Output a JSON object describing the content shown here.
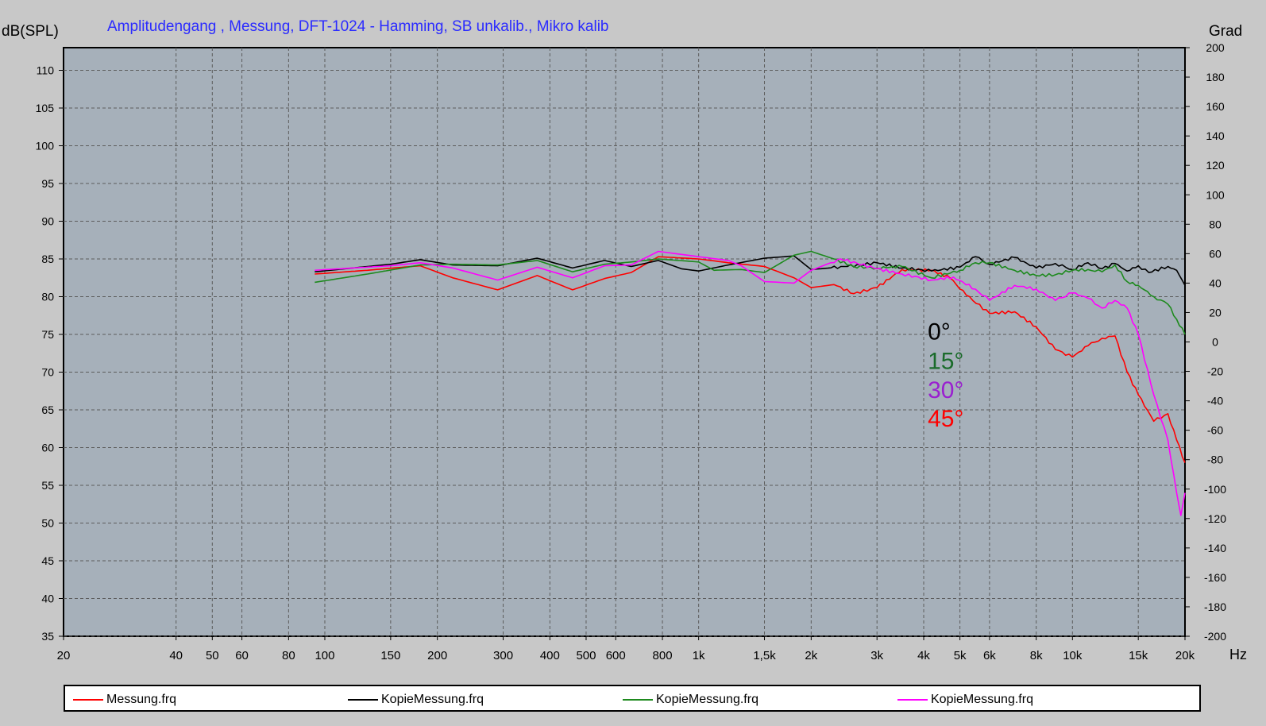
{
  "chart_data": {
    "type": "line",
    "title": "Amplitudengang , Messung, DFT-1024 - Hamming, SB unkalib., Mikro kalib",
    "ylabel": "dB(SPL)",
    "y2label": "Grad",
    "xunit": "Hz",
    "xscale": "log",
    "xlim": [
      20,
      20000
    ],
    "ylim": [
      35,
      113
    ],
    "y2lim": [
      -200,
      200
    ],
    "grid": true,
    "legend_position": "bottom",
    "x_ticks": [
      {
        "v": 20,
        "label": "20"
      },
      {
        "v": 40,
        "label": "40"
      },
      {
        "v": 50,
        "label": "50"
      },
      {
        "v": 60,
        "label": "60"
      },
      {
        "v": 80,
        "label": "80"
      },
      {
        "v": 100,
        "label": "100"
      },
      {
        "v": 150,
        "label": "150"
      },
      {
        "v": 200,
        "label": "200"
      },
      {
        "v": 300,
        "label": "300"
      },
      {
        "v": 400,
        "label": "400"
      },
      {
        "v": 500,
        "label": "500"
      },
      {
        "v": 600,
        "label": "600"
      },
      {
        "v": 800,
        "label": "800"
      },
      {
        "v": 1000,
        "label": "1k"
      },
      {
        "v": 1500,
        "label": "1,5k"
      },
      {
        "v": 2000,
        "label": "2k"
      },
      {
        "v": 3000,
        "label": "3k"
      },
      {
        "v": 4000,
        "label": "4k"
      },
      {
        "v": 5000,
        "label": "5k"
      },
      {
        "v": 6000,
        "label": "6k"
      },
      {
        "v": 8000,
        "label": "8k"
      },
      {
        "v": 10000,
        "label": "10k"
      },
      {
        "v": 15000,
        "label": "15k"
      },
      {
        "v": 20000,
        "label": "20k"
      }
    ],
    "y_ticks": [
      35,
      40,
      45,
      50,
      55,
      60,
      65,
      70,
      75,
      80,
      85,
      90,
      95,
      100,
      105,
      110
    ],
    "y2_ticks": [
      -200,
      -180,
      -160,
      -140,
      -120,
      -100,
      -80,
      -60,
      -40,
      -20,
      0,
      20,
      40,
      60,
      80,
      100,
      120,
      140,
      160,
      180,
      200
    ],
    "annotations": [
      {
        "text": "0°",
        "color": "#000000",
        "x": 4100,
        "y": 74.3
      },
      {
        "text": "15°",
        "color": "#1a6b2a",
        "x": 4100,
        "y": 70.4
      },
      {
        "text": "30°",
        "color": "#9a1fd0",
        "x": 4100,
        "y": 66.6
      },
      {
        "text": "45°",
        "color": "#ff0000",
        "x": 4100,
        "y": 62.8
      }
    ],
    "series": [
      {
        "name": "Messung.frq",
        "color": "#ff0000",
        "points": [
          [
            94,
            83.0
          ],
          [
            130,
            83.5
          ],
          [
            180,
            84.1
          ],
          [
            220,
            82.5
          ],
          [
            290,
            80.9
          ],
          [
            370,
            82.8
          ],
          [
            460,
            80.9
          ],
          [
            560,
            82.4
          ],
          [
            660,
            83.2
          ],
          [
            780,
            85.3
          ],
          [
            1000,
            85.0
          ],
          [
            1200,
            84.5
          ],
          [
            1500,
            84.0
          ],
          [
            1800,
            82.5
          ],
          [
            2000,
            81.2
          ],
          [
            2300,
            81.6
          ],
          [
            2600,
            80.4
          ],
          [
            3000,
            81.2
          ],
          [
            3500,
            83.6
          ],
          [
            4200,
            83.5
          ],
          [
            4700,
            82.5
          ],
          [
            5200,
            80.2
          ],
          [
            6000,
            77.8
          ],
          [
            7000,
            78.0
          ],
          [
            8000,
            76.0
          ],
          [
            9000,
            73.0
          ],
          [
            10000,
            72.0
          ],
          [
            11000,
            73.5
          ],
          [
            12000,
            74.5
          ],
          [
            13000,
            74.8
          ],
          [
            14000,
            70.0
          ],
          [
            15000,
            67.0
          ],
          [
            16500,
            63.5
          ],
          [
            18000,
            64.5
          ],
          [
            19000,
            61.0
          ],
          [
            20000,
            58.0
          ]
        ]
      },
      {
        "name": "KopieMessung.frq",
        "color": "#000000",
        "points": [
          [
            94,
            83.3
          ],
          [
            150,
            84.3
          ],
          [
            180,
            84.9
          ],
          [
            220,
            84.2
          ],
          [
            290,
            84.1
          ],
          [
            370,
            85.1
          ],
          [
            460,
            83.8
          ],
          [
            560,
            84.8
          ],
          [
            660,
            84.0
          ],
          [
            780,
            84.8
          ],
          [
            900,
            83.7
          ],
          [
            1000,
            83.4
          ],
          [
            1200,
            84.2
          ],
          [
            1500,
            85.1
          ],
          [
            1800,
            85.4
          ],
          [
            2000,
            83.6
          ],
          [
            2500,
            84.0
          ],
          [
            3000,
            84.5
          ],
          [
            3500,
            83.8
          ],
          [
            4200,
            83.4
          ],
          [
            5000,
            83.9
          ],
          [
            5500,
            85.3
          ],
          [
            6000,
            84.3
          ],
          [
            7000,
            85.2
          ],
          [
            8000,
            83.8
          ],
          [
            9000,
            84.4
          ],
          [
            10000,
            83.6
          ],
          [
            11000,
            84.5
          ],
          [
            12000,
            83.7
          ],
          [
            13000,
            84.4
          ],
          [
            14000,
            83.4
          ],
          [
            15000,
            84.1
          ],
          [
            16000,
            83.2
          ],
          [
            18000,
            84.0
          ],
          [
            19000,
            83.5
          ],
          [
            20000,
            81.5
          ]
        ]
      },
      {
        "name": "KopieMessung.frq",
        "color": "#1e8a1e",
        "points": [
          [
            94,
            81.9
          ],
          [
            130,
            83.0
          ],
          [
            180,
            84.2
          ],
          [
            220,
            84.3
          ],
          [
            290,
            84.2
          ],
          [
            370,
            84.8
          ],
          [
            460,
            83.3
          ],
          [
            560,
            84.3
          ],
          [
            660,
            84.6
          ],
          [
            780,
            85.0
          ],
          [
            1000,
            84.6
          ],
          [
            1100,
            83.5
          ],
          [
            1300,
            83.6
          ],
          [
            1500,
            83.2
          ],
          [
            1800,
            85.5
          ],
          [
            2000,
            86.0
          ],
          [
            2300,
            85.0
          ],
          [
            2600,
            84.0
          ],
          [
            3000,
            83.8
          ],
          [
            3500,
            84.0
          ],
          [
            4200,
            82.5
          ],
          [
            5000,
            83.5
          ],
          [
            5500,
            84.5
          ],
          [
            6000,
            84.5
          ],
          [
            7000,
            83.5
          ],
          [
            8000,
            82.8
          ],
          [
            9000,
            82.9
          ],
          [
            10000,
            83.5
          ],
          [
            11000,
            83.6
          ],
          [
            12000,
            83.3
          ],
          [
            13000,
            84.2
          ],
          [
            14000,
            82.0
          ],
          [
            15000,
            81.5
          ],
          [
            16500,
            80.0
          ],
          [
            18000,
            79.0
          ],
          [
            19000,
            77.0
          ],
          [
            20000,
            75.0
          ]
        ]
      },
      {
        "name": "KopieMessung.frq",
        "color": "#ff00ff",
        "points": [
          [
            94,
            83.5
          ],
          [
            150,
            84.1
          ],
          [
            180,
            84.5
          ],
          [
            220,
            83.8
          ],
          [
            290,
            82.2
          ],
          [
            370,
            83.9
          ],
          [
            460,
            82.5
          ],
          [
            560,
            84.1
          ],
          [
            660,
            84.2
          ],
          [
            780,
            86.0
          ],
          [
            1000,
            85.3
          ],
          [
            1200,
            84.8
          ],
          [
            1300,
            84.1
          ],
          [
            1500,
            82.0
          ],
          [
            1800,
            81.8
          ],
          [
            2000,
            83.5
          ],
          [
            2400,
            85.0
          ],
          [
            3000,
            83.7
          ],
          [
            3500,
            83.0
          ],
          [
            4200,
            82.2
          ],
          [
            4800,
            82.6
          ],
          [
            5500,
            81.0
          ],
          [
            6000,
            79.5
          ],
          [
            7000,
            81.5
          ],
          [
            8000,
            81.0
          ],
          [
            9000,
            79.5
          ],
          [
            10000,
            80.5
          ],
          [
            11000,
            79.8
          ],
          [
            12000,
            78.5
          ],
          [
            13000,
            79.5
          ],
          [
            14000,
            78.5
          ],
          [
            15000,
            75.0
          ],
          [
            16500,
            67.0
          ],
          [
            18000,
            61.0
          ],
          [
            19000,
            54.0
          ],
          [
            19500,
            51.0
          ],
          [
            20000,
            54.0
          ]
        ]
      }
    ]
  }
}
